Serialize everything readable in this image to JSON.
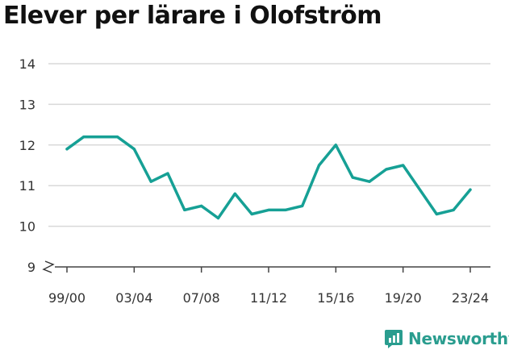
{
  "title": "Elever per lärare i Olofström",
  "brand": {
    "name": "Newsworthy",
    "logo_icon": "newsworthy-logo-icon",
    "color": "#2a9d8f"
  },
  "chart_data": {
    "type": "line",
    "title": "Elever per lärare i Olofström",
    "xlabel": "",
    "ylabel": "",
    "ylim": [
      9,
      14
    ],
    "y_ticks": [
      9,
      10,
      11,
      12,
      13,
      14
    ],
    "y_axis_break": true,
    "grid": true,
    "x_tick_labels": [
      "99/00",
      "03/04",
      "07/08",
      "11/12",
      "15/16",
      "19/20",
      "23/24"
    ],
    "x": [
      "99/00",
      "00/01",
      "01/02",
      "02/03",
      "03/04",
      "04/05",
      "05/06",
      "06/07",
      "07/08",
      "08/09",
      "09/10",
      "10/11",
      "11/12",
      "12/13",
      "13/14",
      "14/15",
      "15/16",
      "16/17",
      "17/18",
      "18/19",
      "19/20",
      "20/21",
      "21/22",
      "22/23",
      "23/24"
    ],
    "series": [
      {
        "color": "#16a095",
        "values": [
          11.9,
          12.2,
          12.2,
          12.2,
          11.9,
          11.1,
          11.3,
          10.4,
          10.5,
          10.2,
          10.8,
          10.3,
          10.4,
          10.4,
          10.5,
          11.5,
          12.0,
          11.2,
          11.1,
          11.4,
          11.5,
          null,
          10.3,
          10.4,
          10.9
        ]
      }
    ]
  }
}
